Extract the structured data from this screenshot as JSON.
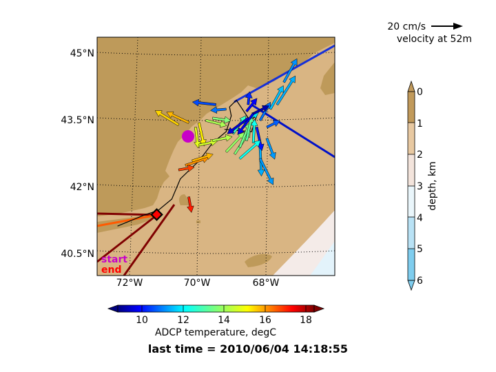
{
  "chart_data": {
    "type": "map",
    "x_ticks": [
      {
        "label": "72°W",
        "value": -72
      },
      {
        "label": "70°W",
        "value": -70
      },
      {
        "label": "68°W",
        "value": -68
      }
    ],
    "y_ticks": [
      {
        "label": "45°N",
        "value": 45
      },
      {
        "label": "43.5°N",
        "value": 43.5
      },
      {
        "label": "42°N",
        "value": 42
      },
      {
        "label": "40.5°N",
        "value": 40.5
      }
    ],
    "lon_range": [
      -73,
      -66
    ],
    "lat_range": [
      40,
      45.3
    ],
    "grid": true,
    "reference_arrow": {
      "label": "20 cm/s",
      "sublabel": "velocity at 52m"
    },
    "markers": {
      "start_label": "start",
      "end_label": "end"
    },
    "track": [
      [
        -72.4,
        41.1
      ],
      [
        -71.6,
        41.35
      ],
      [
        -71.2,
        41.45
      ],
      [
        -70.8,
        41.7
      ],
      [
        -70.55,
        42.15
      ],
      [
        -70.0,
        42.55
      ],
      [
        -69.6,
        42.95
      ],
      [
        -69.2,
        43.2
      ],
      [
        -69.05,
        43.55
      ],
      [
        -69.1,
        43.75
      ],
      [
        -68.9,
        43.9
      ],
      [
        -68.5,
        43.45
      ],
      [
        -68.3,
        43.55
      ],
      [
        -68.45,
        43.2
      ],
      [
        -69.25,
        43.25
      ]
    ],
    "velocity_arrows": [
      {
        "lon": -70.6,
        "lat": 43.35,
        "u": -0.9,
        "v": 0.55,
        "temp": 15.5
      },
      {
        "lon": -70.3,
        "lat": 43.4,
        "u": -0.85,
        "v": 0.4,
        "temp": 15.8
      },
      {
        "lon": -70.1,
        "lat": 43.3,
        "u": 0.1,
        "v": -0.8,
        "temp": 14.8
      },
      {
        "lon": -70.0,
        "lat": 43.4,
        "u": 0.2,
        "v": -0.9,
        "temp": 15.2
      },
      {
        "lon": -69.8,
        "lat": 43.45,
        "u": 0.8,
        "v": -0.2,
        "temp": 14.2
      },
      {
        "lon": -69.6,
        "lat": 43.5,
        "u": 0.7,
        "v": -0.1,
        "temp": 13.8
      },
      {
        "lon": -69.5,
        "lat": 43.8,
        "u": -0.9,
        "v": 0.1,
        "temp": 10.6
      },
      {
        "lon": -69.2,
        "lat": 43.7,
        "u": -0.6,
        "v": -0.05,
        "temp": 11.0
      },
      {
        "lon": -70.0,
        "lat": 42.9,
        "u": 0.7,
        "v": 0.15,
        "temp": 14.6
      },
      {
        "lon": -69.6,
        "lat": 43.0,
        "u": 0.75,
        "v": 0.15,
        "temp": 14.3
      },
      {
        "lon": -70.4,
        "lat": 42.45,
        "u": 0.9,
        "v": 0.3,
        "temp": 16.2
      },
      {
        "lon": -70.2,
        "lat": 42.55,
        "u": 0.8,
        "v": 0.25,
        "temp": 15.8
      },
      {
        "lon": -70.6,
        "lat": 42.35,
        "u": 0.6,
        "v": 0.1,
        "temp": 17.0
      },
      {
        "lon": -70.3,
        "lat": 41.75,
        "u": 0.1,
        "v": -0.6,
        "temp": 17.4
      },
      {
        "lon": -69.2,
        "lat": 42.75,
        "u": 0.7,
        "v": 0.75,
        "temp": 14.0
      },
      {
        "lon": -68.95,
        "lat": 42.7,
        "u": 0.6,
        "v": 0.9,
        "temp": 13.8
      },
      {
        "lon": -68.8,
        "lat": 42.85,
        "u": 0.4,
        "v": 0.95,
        "temp": 13.6
      },
      {
        "lon": -68.6,
        "lat": 43.0,
        "u": 0.2,
        "v": 0.95,
        "temp": 13.4
      },
      {
        "lon": -69.0,
        "lat": 43.15,
        "u": 0.5,
        "v": 0.7,
        "temp": 13.0
      },
      {
        "lon": -68.4,
        "lat": 42.95,
        "u": 0.05,
        "v": 0.9,
        "temp": 12.6
      },
      {
        "lon": -68.7,
        "lat": 43.4,
        "u": 0.6,
        "v": 0.4,
        "temp": 12.2
      },
      {
        "lon": -68.2,
        "lat": 42.85,
        "u": 0.05,
        "v": -1.1,
        "temp": 11.6
      },
      {
        "lon": -68.4,
        "lat": 43.6,
        "u": -0.6,
        "v": -0.8,
        "temp": 9.6
      },
      {
        "lon": -68.3,
        "lat": 43.3,
        "u": 0.2,
        "v": -0.9,
        "temp": 10.0
      },
      {
        "lon": -68.2,
        "lat": 43.45,
        "u": 0.4,
        "v": 0.7,
        "temp": 11.0
      },
      {
        "lon": -68.0,
        "lat": 43.3,
        "u": 0.5,
        "v": 0.25,
        "temp": 10.8
      },
      {
        "lon": -68.0,
        "lat": 43.05,
        "u": 0.3,
        "v": -0.8,
        "temp": 11.4
      },
      {
        "lon": -68.55,
        "lat": 43.8,
        "u": 0.05,
        "v": 0.5,
        "temp": 10.2
      },
      {
        "lon": -67.9,
        "lat": 43.7,
        "u": 0.5,
        "v": 0.9,
        "temp": 11.8
      },
      {
        "lon": -67.7,
        "lat": 43.8,
        "u": 0.7,
        "v": 1.1,
        "temp": 11.6
      },
      {
        "lon": -67.5,
        "lat": 44.3,
        "u": 0.5,
        "v": 0.9,
        "temp": 11.3
      },
      {
        "lon": -68.2,
        "lat": 42.6,
        "u": 0.5,
        "v": -1.0,
        "temp": 11.4
      },
      {
        "lon": -68.8,
        "lat": 42.6,
        "u": 0.8,
        "v": 0.7,
        "temp": 12.6
      },
      {
        "lon": -68.55,
        "lat": 43.5,
        "u": -0.8,
        "v": -0.6,
        "temp": 9.4
      },
      {
        "lon": -68.6,
        "lat": 43.65,
        "u": 0.4,
        "v": 0.5,
        "temp": 9.8
      },
      {
        "lon": -68.4,
        "lat": 43.6,
        "u": 0.6,
        "v": 0.3,
        "temp": 9.0
      }
    ],
    "colorbar_temperature": {
      "label": "ADCP temperature, degC",
      "ticks": [
        "10",
        "12",
        "14",
        "16",
        "18"
      ],
      "tick_values": [
        10,
        12,
        14,
        16,
        18
      ],
      "range": [
        8.5,
        19.0
      ],
      "colormap": "jet"
    },
    "colorbar_depth": {
      "label": "depth, km",
      "ticks": [
        "0",
        "1",
        "2",
        "3",
        "4",
        "5",
        "6"
      ],
      "tick_values": [
        0,
        1,
        2,
        3,
        4,
        5,
        6
      ],
      "colors": [
        "#c19a5b",
        "#e8c9a2",
        "#f3e4dc",
        "#eaf6fb",
        "#b9e2f5",
        "#7fcdee"
      ]
    },
    "footer": "last time = 2010/06/04 14:18:55"
  },
  "colors": {
    "land": "#be9a5a",
    "shelf": "#d9b583",
    "deep": "#f4ebe8",
    "deeper": "#e3f3fb",
    "start_marker": "#c800c8",
    "end_marker": "#ff0000"
  }
}
